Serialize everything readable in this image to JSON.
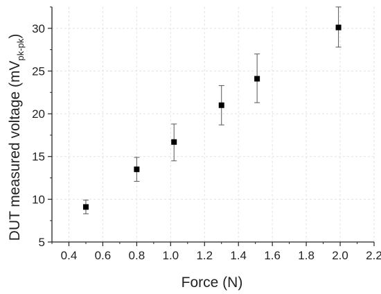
{
  "chart_data": {
    "type": "scatter",
    "xlabel": "Force (N)",
    "ylabel": {
      "prefix": "DUT measured voltage (mV",
      "subscript": "pk-pk",
      "suffix": ")"
    },
    "xlim": [
      0.3,
      2.2
    ],
    "ylim": [
      5,
      32.5
    ],
    "xticks": [
      0.4,
      0.6,
      0.8,
      1.0,
      1.2,
      1.4,
      1.6,
      1.8,
      2.0,
      2.2
    ],
    "xtick_labels": [
      "0.4",
      "0.6",
      "0.8",
      "1.0",
      "1.2",
      "1.4",
      "1.6",
      "1.8",
      "2.0",
      "2.2"
    ],
    "yticks": [
      5,
      10,
      15,
      20,
      25,
      30
    ],
    "ytick_labels": [
      "5",
      "10",
      "15",
      "20",
      "25",
      "30"
    ],
    "grid": true,
    "legend": "none",
    "marker_color": "#000000",
    "points": [
      {
        "x": 0.5,
        "y": 9.1,
        "yerr_low": 8.3,
        "yerr_high": 9.9
      },
      {
        "x": 0.8,
        "y": 13.5,
        "yerr_low": 12.1,
        "yerr_high": 14.9
      },
      {
        "x": 1.02,
        "y": 16.7,
        "yerr_low": 14.5,
        "yerr_high": 18.8
      },
      {
        "x": 1.3,
        "y": 21.0,
        "yerr_low": 18.7,
        "yerr_high": 23.3
      },
      {
        "x": 1.51,
        "y": 24.1,
        "yerr_low": 21.3,
        "yerr_high": 27.0
      },
      {
        "x": 1.99,
        "y": 30.1,
        "yerr_low": 27.8,
        "yerr_high": 32.5
      }
    ]
  }
}
